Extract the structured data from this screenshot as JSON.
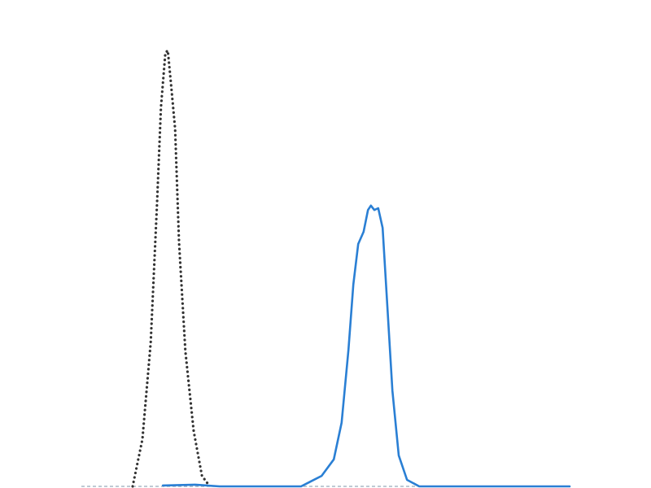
{
  "chart_data": {
    "type": "line",
    "xlim": [
      0,
      100
    ],
    "ylim": [
      0,
      100
    ],
    "series": [
      {
        "color": "#333333",
        "dash": "dotted",
        "x": [
          10.5,
          12.5,
          14.2,
          15.5,
          16.3,
          17.2,
          17.7,
          18.3,
          19.2,
          20,
          21.3,
          23,
          24.7,
          26.3
        ],
        "values": [
          0,
          10.8,
          33,
          65,
          87,
          99.4,
          100,
          93,
          82,
          56,
          31,
          12.7,
          2.4,
          0
        ]
      },
      {
        "color": "#2a7fd4",
        "dash": "solid",
        "x": [
          16.7,
          23.3,
          28.3,
          45,
          49.2,
          51.7,
          53.3,
          54.7,
          55.7,
          56.7,
          57.8,
          58.7,
          59.3,
          60,
          60.8,
          61.7,
          62.7,
          63.7,
          65,
          66.7,
          69.2,
          100
        ],
        "values": [
          0.2,
          0.4,
          0,
          0,
          2.4,
          6.2,
          14.6,
          31.3,
          46.3,
          55.6,
          58.4,
          63.4,
          64.4,
          63.4,
          63.8,
          59.3,
          40.7,
          22,
          7.1,
          1.5,
          0,
          0
        ]
      }
    ]
  }
}
